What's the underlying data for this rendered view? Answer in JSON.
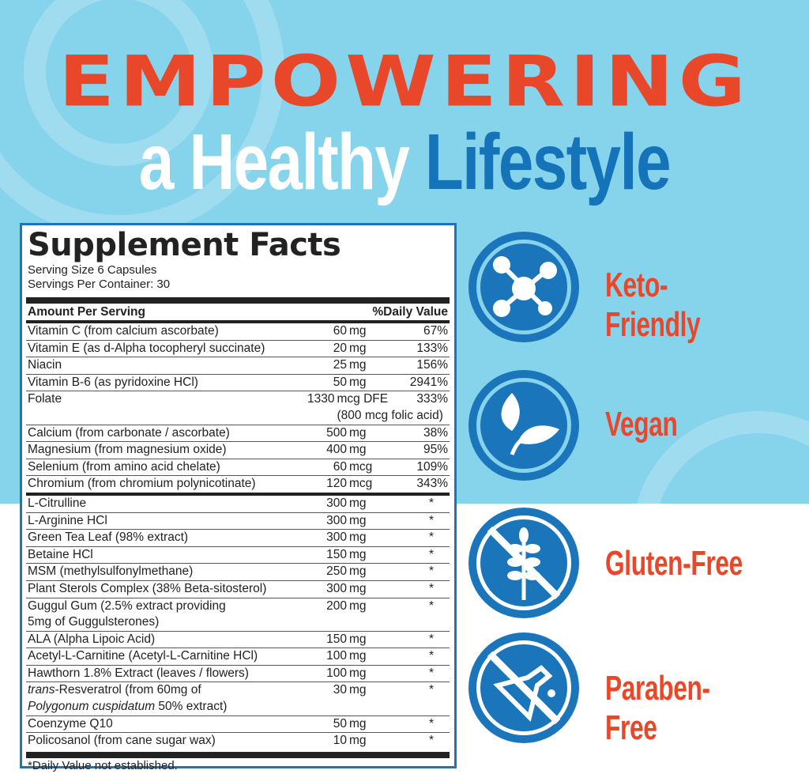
{
  "headline": {
    "line1": "EMPOWERING",
    "line2a": "a Healthy",
    "line2b": "Lifestyle"
  },
  "colors": {
    "bg": "#86d3ec",
    "orange": "#e8472a",
    "blue": "#1573b9"
  },
  "facts": {
    "title": "Supplement Facts",
    "serving_size": "Serving Size 6 Capsules",
    "servings_per_container": "Servings Per Container:  30",
    "amount_header": "Amount Per Serving",
    "dv_header": "%Daily Value",
    "group1": [
      {
        "name": "Vitamin C (from calcium ascorbate)",
        "num": "60",
        "unit": "mg",
        "dv": "67%"
      },
      {
        "name": "Vitamin E (as d-Alpha tocopheryl succinate)",
        "num": "20",
        "unit": "mg",
        "dv": "133%"
      },
      {
        "name": "Niacin",
        "num": "25",
        "unit": "mg",
        "dv": "156%"
      },
      {
        "name": "Vitamin B-6 (as pyridoxine HCl)",
        "num": "50",
        "unit": "mg",
        "dv": "2941%"
      },
      {
        "name": "Folate",
        "num": "1330",
        "unit": "mcg DFE\n(800 mcg folic acid)",
        "dv": "333%"
      },
      {
        "name": "Calcium (from carbonate / ascorbate)",
        "num": "500",
        "unit": "mg",
        "dv": "38%"
      },
      {
        "name": "Magnesium (from magnesium oxide)",
        "num": "400",
        "unit": "mg",
        "dv": "95%"
      },
      {
        "name": "Selenium (from amino acid chelate)",
        "num": "60",
        "unit": "mcg",
        "dv": "109%"
      },
      {
        "name": "Chromium (from chromium polynicotinate)",
        "num": "120",
        "unit": "mcg",
        "dv": "343%"
      }
    ],
    "group2": [
      {
        "name": "L-Citrulline",
        "num": "300",
        "unit": "mg",
        "dv": "*"
      },
      {
        "name": "L-Arginine HCl",
        "num": "300",
        "unit": "mg",
        "dv": "*"
      },
      {
        "name": "Green Tea Leaf (98% extract)",
        "num": "300",
        "unit": "mg",
        "dv": "*"
      },
      {
        "name": "Betaine HCl",
        "num": "150",
        "unit": "mg",
        "dv": "*"
      },
      {
        "name": "MSM (methylsulfonylmethane)",
        "num": "250",
        "unit": "mg",
        "dv": "*"
      },
      {
        "name": "Plant Sterols Complex (38% Beta-sitosterol)",
        "num": "300",
        "unit": "mg",
        "dv": "*"
      },
      {
        "name": "Guggul Gum (2.5% extract providing\n   5mg of Guggulsterones)",
        "num": "200",
        "unit": "mg",
        "dv": "*"
      },
      {
        "name": "ALA (Alpha Lipoic Acid)",
        "num": "150",
        "unit": "mg",
        "dv": "*"
      },
      {
        "name": "Acetyl-L-Carnitine (Acetyl-L-Carnitine HCl)",
        "num": "100",
        "unit": "mg",
        "dv": "*"
      },
      {
        "name": "Hawthorn 1.8% Extract (leaves / flowers)",
        "num": "100",
        "unit": "mg",
        "dv": "*"
      },
      {
        "name": "trans-Resveratrol (from 60mg of\n   Polygonum cuspidatum 50% extract)",
        "num": "30",
        "unit": "mg",
        "dv": "*"
      },
      {
        "name": "Coenzyme Q10",
        "num": "50",
        "unit": "mg",
        "dv": "*"
      },
      {
        "name": "Policosanol (from cane sugar wax)",
        "num": "10",
        "unit": "mg",
        "dv": "*"
      }
    ],
    "footnote": "*Daily Value not established."
  },
  "badges": [
    {
      "label": "Keto-Friendly",
      "icon": "molecule-icon"
    },
    {
      "label": "Vegan",
      "icon": "leaf-icon"
    },
    {
      "label": "Gluten-Free",
      "icon": "no-wheat-icon"
    },
    {
      "label": "Paraben-Free",
      "icon": "no-flask-icon"
    }
  ]
}
